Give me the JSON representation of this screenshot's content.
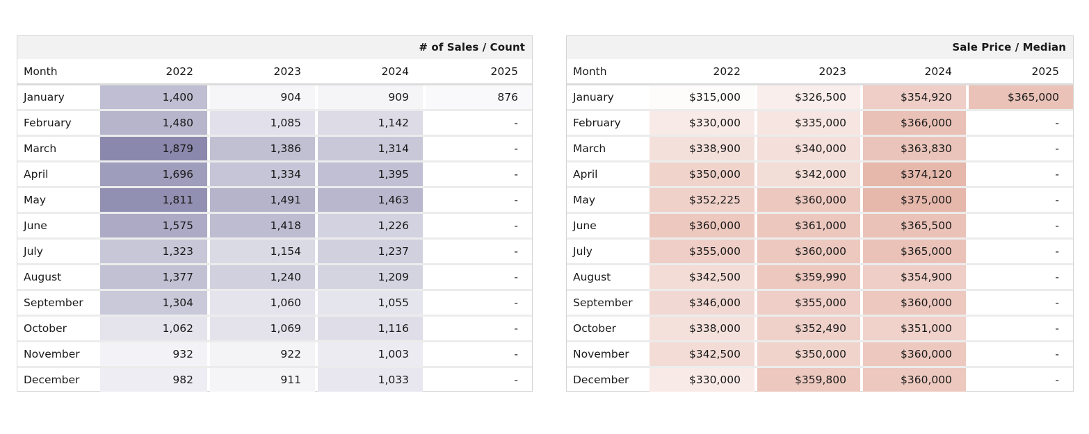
{
  "chart_data": [
    {
      "type": "table",
      "title": "# of Sales / Count",
      "row_header": "Month",
      "columns": [
        "2022",
        "2023",
        "2024",
        "2025"
      ],
      "rows": [
        {
          "month": "January",
          "values": [
            "1,400",
            "904",
            "909",
            "876"
          ]
        },
        {
          "month": "February",
          "values": [
            "1,480",
            "1,085",
            "1,142",
            "-"
          ]
        },
        {
          "month": "March",
          "values": [
            "1,879",
            "1,386",
            "1,314",
            "-"
          ]
        },
        {
          "month": "April",
          "values": [
            "1,696",
            "1,334",
            "1,395",
            "-"
          ]
        },
        {
          "month": "May",
          "values": [
            "1,811",
            "1,491",
            "1,463",
            "-"
          ]
        },
        {
          "month": "June",
          "values": [
            "1,575",
            "1,418",
            "1,226",
            "-"
          ]
        },
        {
          "month": "July",
          "values": [
            "1,323",
            "1,154",
            "1,237",
            "-"
          ]
        },
        {
          "month": "August",
          "values": [
            "1,377",
            "1,240",
            "1,209",
            "-"
          ]
        },
        {
          "month": "September",
          "values": [
            "1,304",
            "1,060",
            "1,055",
            "-"
          ]
        },
        {
          "month": "October",
          "values": [
            "1,062",
            "1,069",
            "1,116",
            "-"
          ]
        },
        {
          "month": "November",
          "values": [
            "932",
            "922",
            "1,003",
            "-"
          ]
        },
        {
          "month": "December",
          "values": [
            "982",
            "911",
            "1,033",
            "-"
          ]
        }
      ],
      "heat_color": "#8a88ad"
    },
    {
      "type": "table",
      "title": "Sale Price / Median",
      "row_header": "Month",
      "columns": [
        "2022",
        "2023",
        "2024",
        "2025"
      ],
      "rows": [
        {
          "month": "January",
          "values": [
            "$315,000",
            "$326,500",
            "$354,920",
            "$365,000"
          ]
        },
        {
          "month": "February",
          "values": [
            "$330,000",
            "$335,000",
            "$366,000",
            "-"
          ]
        },
        {
          "month": "March",
          "values": [
            "$338,900",
            "$340,000",
            "$363,830",
            "-"
          ]
        },
        {
          "month": "April",
          "values": [
            "$350,000",
            "$342,000",
            "$374,120",
            "-"
          ]
        },
        {
          "month": "May",
          "values": [
            "$352,225",
            "$360,000",
            "$375,000",
            "-"
          ]
        },
        {
          "month": "June",
          "values": [
            "$360,000",
            "$361,000",
            "$365,500",
            "-"
          ]
        },
        {
          "month": "July",
          "values": [
            "$355,000",
            "$360,000",
            "$365,000",
            "-"
          ]
        },
        {
          "month": "August",
          "values": [
            "$342,500",
            "$359,990",
            "$354,900",
            "-"
          ]
        },
        {
          "month": "September",
          "values": [
            "$346,000",
            "$355,000",
            "$360,000",
            "-"
          ]
        },
        {
          "month": "October",
          "values": [
            "$338,000",
            "$352,490",
            "$351,000",
            "-"
          ]
        },
        {
          "month": "November",
          "values": [
            "$342,500",
            "$350,000",
            "$360,000",
            "-"
          ]
        },
        {
          "month": "December",
          "values": [
            "$330,000",
            "$359,800",
            "$360,000",
            "-"
          ]
        }
      ],
      "heat_color": "#e6b7ab"
    }
  ]
}
